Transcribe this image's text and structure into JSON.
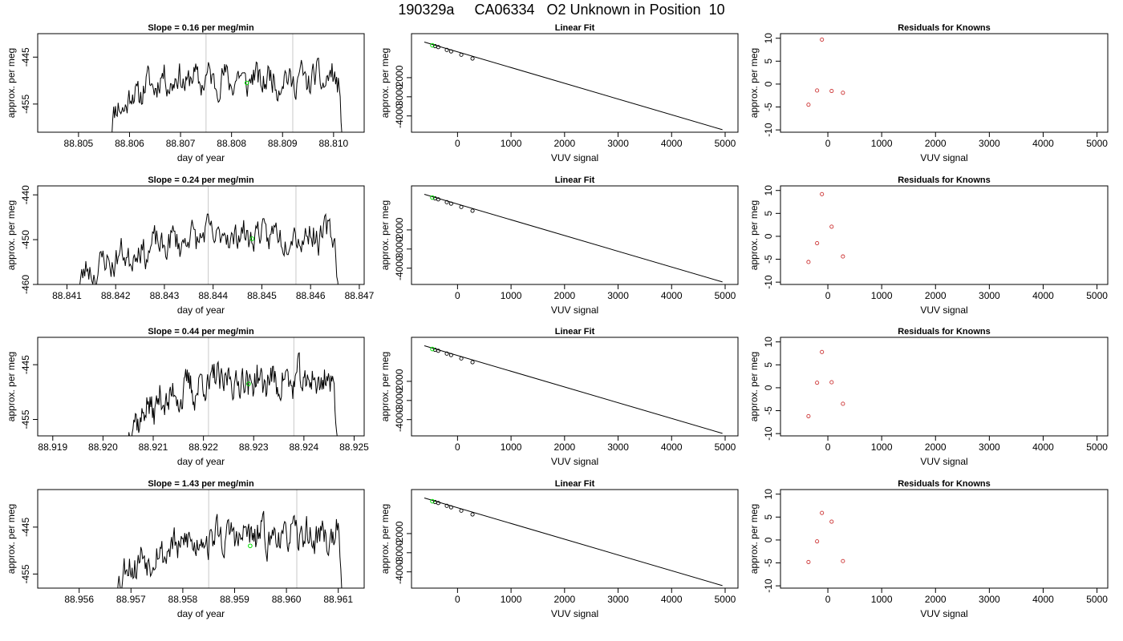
{
  "page": {
    "title": "190329a     CA06334   O2 Unknown in Position  10"
  },
  "colors": {
    "trace": "#000000",
    "marker": "#00e000",
    "residual_points": "#cc3333",
    "guide_lines": "#c8c8c8"
  },
  "chart_data": [
    {
      "type": "line",
      "id": "time-1",
      "title": "Slope =  0.16  per meg/min",
      "xlabel": "day of year",
      "ylabel": "approx. per meg",
      "xlim": [
        88.8042,
        88.8106
      ],
      "ylim": [
        -461,
        -440
      ],
      "xticks": [
        "88.805",
        "88.806",
        "88.807",
        "88.808",
        "88.809",
        "88.810"
      ],
      "xtick_values": [
        88.805,
        88.806,
        88.807,
        88.808,
        88.809,
        88.81
      ],
      "yticks": [
        "-445",
        "-455"
      ],
      "ytick_values": [
        -445,
        -455
      ],
      "x_start": 88.8056,
      "x_end": 88.8102,
      "level_start": -461,
      "level_end": -449.8,
      "ramp_end": 88.8066,
      "drop_start": 88.8101,
      "noise": 1.2,
      "seed": 11,
      "guide_lines": [
        88.8075,
        88.8092
      ],
      "marker": {
        "x": 88.8083,
        "y": -450.5
      }
    },
    {
      "type": "scatter",
      "id": "fit-1",
      "title": "Linear Fit",
      "xlabel": "VUV signal",
      "ylabel": "approx. per meg",
      "xlim": [
        -860,
        5240
      ],
      "ylim": [
        -4850,
        300
      ],
      "xticks": [
        "0",
        "1000",
        "2000",
        "3000",
        "4000",
        "5000"
      ],
      "xtick_values": [
        0,
        1000,
        2000,
        3000,
        4000,
        5000
      ],
      "yticks": [
        "-2000",
        "-3000",
        "-4000"
      ],
      "ytick_values": [
        -2000,
        -3000,
        -4000
      ],
      "points": [
        [
          -420,
          -350
        ],
        [
          -360,
          -403
        ],
        [
          -200,
          -552
        ],
        [
          -120,
          -627
        ],
        [
          70,
          -804
        ],
        [
          280,
          -1000
        ]
      ],
      "line": [
        [
          -620,
          -140
        ],
        [
          4950,
          -4720
        ]
      ],
      "marker": {
        "x": -470,
        "y": -310
      }
    },
    {
      "type": "scatter",
      "id": "resid-1",
      "title": "Residuals for Knowns",
      "xlabel": "VUV signal",
      "ylabel": "approx. per meg",
      "xlim": [
        -880,
        5200
      ],
      "ylim": [
        -10.5,
        11
      ],
      "xticks": [
        "0",
        "1000",
        "2000",
        "3000",
        "4000",
        "5000"
      ],
      "xtick_values": [
        0,
        1000,
        2000,
        3000,
        4000,
        5000
      ],
      "yticks": [
        "-10",
        "-5",
        "0",
        "5",
        "10"
      ],
      "ytick_values": [
        -10,
        -5,
        0,
        5,
        10
      ],
      "points": [
        [
          -360,
          -4.5
        ],
        [
          -200,
          -1.4
        ],
        [
          -110,
          9.7
        ],
        [
          70,
          -1.5
        ],
        [
          280,
          -1.9
        ]
      ]
    },
    {
      "type": "line",
      "id": "time-2",
      "title": "Slope =  0.24  per meg/min",
      "xlabel": "day of year",
      "ylabel": "approx. per meg",
      "xlim": [
        88.8404,
        88.8471
      ],
      "ylim": [
        -460,
        -438
      ],
      "xticks": [
        "88.841",
        "88.842",
        "88.843",
        "88.844",
        "88.845",
        "88.846",
        "88.847"
      ],
      "xtick_values": [
        88.841,
        88.842,
        88.843,
        88.844,
        88.845,
        88.846,
        88.847
      ],
      "yticks": [
        "-440",
        "-450",
        "-460"
      ],
      "ytick_values": [
        -440,
        -450,
        -460
      ],
      "x_start": 88.8412,
      "x_end": 88.8466,
      "level_start": -461,
      "level_end": -449,
      "ramp_end": 88.8438,
      "drop_start": 88.8465,
      "noise": 1.3,
      "seed": 23,
      "guide_lines": [
        88.8439,
        88.8457
      ],
      "marker": {
        "x": 88.8448,
        "y": -449.8
      }
    },
    {
      "type": "scatter",
      "id": "fit-2",
      "title": "Linear Fit",
      "xlabel": "VUV signal",
      "ylabel": "approx. per meg",
      "xlim": [
        -860,
        5240
      ],
      "ylim": [
        -4850,
        300
      ],
      "xticks": [
        "0",
        "1000",
        "2000",
        "3000",
        "4000",
        "5000"
      ],
      "xtick_values": [
        0,
        1000,
        2000,
        3000,
        4000,
        5000
      ],
      "yticks": [
        "-2000",
        "-3000",
        "-4000"
      ],
      "ytick_values": [
        -2000,
        -3000,
        -4000
      ],
      "points": [
        [
          -420,
          -350
        ],
        [
          -360,
          -403
        ],
        [
          -200,
          -552
        ],
        [
          -120,
          -627
        ],
        [
          70,
          -804
        ],
        [
          280,
          -1000
        ]
      ],
      "line": [
        [
          -620,
          -140
        ],
        [
          4950,
          -4720
        ]
      ],
      "marker": {
        "x": -470,
        "y": -310
      }
    },
    {
      "type": "scatter",
      "id": "resid-2",
      "title": "Residuals for Knowns",
      "xlabel": "VUV signal",
      "ylabel": "approx. per meg",
      "xlim": [
        -880,
        5200
      ],
      "ylim": [
        -10.5,
        11
      ],
      "xticks": [
        "0",
        "1000",
        "2000",
        "3000",
        "4000",
        "5000"
      ],
      "xtick_values": [
        0,
        1000,
        2000,
        3000,
        4000,
        5000
      ],
      "yticks": [
        "-10",
        "-5",
        "0",
        "5",
        "10"
      ],
      "ytick_values": [
        -10,
        -5,
        0,
        5,
        10
      ],
      "points": [
        [
          -360,
          -5.6
        ],
        [
          -200,
          -1.5
        ],
        [
          -110,
          9.2
        ],
        [
          70,
          2.1
        ],
        [
          280,
          -4.4
        ]
      ]
    },
    {
      "type": "line",
      "id": "time-3",
      "title": "Slope =  0.44  per meg/min",
      "xlabel": "day of year",
      "ylabel": "approx. per meg",
      "xlim": [
        88.9187,
        88.9252
      ],
      "ylim": [
        -458,
        -440
      ],
      "xticks": [
        "88.919",
        "88.920",
        "88.921",
        "88.922",
        "88.923",
        "88.924",
        "88.925"
      ],
      "xtick_values": [
        88.919,
        88.92,
        88.921,
        88.922,
        88.923,
        88.924,
        88.925
      ],
      "yticks": [
        "-445",
        "-455"
      ],
      "ytick_values": [
        -445,
        -455
      ],
      "x_start": 88.9205,
      "x_end": 88.9247,
      "level_start": -458,
      "level_end": -448,
      "ramp_end": 88.9222,
      "drop_start": 88.9246,
      "noise": 1.2,
      "seed": 37,
      "guide_lines": [
        88.9221,
        88.9238
      ],
      "marker": {
        "x": 88.9229,
        "y": -448.5
      }
    },
    {
      "type": "scatter",
      "id": "fit-3",
      "title": "Linear Fit",
      "xlabel": "VUV signal",
      "ylabel": "approx. per meg",
      "xlim": [
        -860,
        5240
      ],
      "ylim": [
        -4850,
        300
      ],
      "xticks": [
        "0",
        "1000",
        "2000",
        "3000",
        "4000",
        "5000"
      ],
      "xtick_values": [
        0,
        1000,
        2000,
        3000,
        4000,
        5000
      ],
      "yticks": [
        "-2000",
        "-3000",
        "-4000"
      ],
      "ytick_values": [
        -2000,
        -3000,
        -4000
      ],
      "points": [
        [
          -420,
          -350
        ],
        [
          -360,
          -403
        ],
        [
          -200,
          -552
        ],
        [
          -120,
          -627
        ],
        [
          70,
          -804
        ],
        [
          280,
          -1000
        ]
      ],
      "line": [
        [
          -620,
          -140
        ],
        [
          4950,
          -4720
        ]
      ],
      "marker": {
        "x": -470,
        "y": -310
      }
    },
    {
      "type": "scatter",
      "id": "resid-3",
      "title": "Residuals for Knowns",
      "xlabel": "VUV signal",
      "ylabel": "approx. per meg",
      "xlim": [
        -880,
        5200
      ],
      "ylim": [
        -10.5,
        11
      ],
      "xticks": [
        "0",
        "1000",
        "2000",
        "3000",
        "4000",
        "5000"
      ],
      "xtick_values": [
        0,
        1000,
        2000,
        3000,
        4000,
        5000
      ],
      "yticks": [
        "-10",
        "-5",
        "0",
        "5",
        "10"
      ],
      "ytick_values": [
        -10,
        -5,
        0,
        5,
        10
      ],
      "points": [
        [
          -360,
          -6.2
        ],
        [
          -200,
          1.1
        ],
        [
          -110,
          7.8
        ],
        [
          70,
          1.2
        ],
        [
          280,
          -3.5
        ]
      ]
    },
    {
      "type": "line",
      "id": "time-4",
      "title": "Slope =  1.43  per meg/min",
      "xlabel": "day of year",
      "ylabel": "approx. per meg",
      "xlim": [
        88.9552,
        88.9615
      ],
      "ylim": [
        -458,
        -437
      ],
      "xticks": [
        "88.956",
        "88.957",
        "88.958",
        "88.959",
        "88.960",
        "88.961"
      ],
      "xtick_values": [
        88.956,
        88.957,
        88.958,
        88.959,
        88.96,
        88.961
      ],
      "yticks": [
        "-445",
        "-455"
      ],
      "ytick_values": [
        -445,
        -455
      ],
      "x_start": 88.9567,
      "x_end": 88.9611,
      "level_start": -457,
      "level_end": -447,
      "ramp_end": 88.9586,
      "drop_start": 88.961,
      "noise": 1.4,
      "seed": 53,
      "guide_lines": [
        88.9585,
        88.9602
      ],
      "marker": {
        "x": 88.9593,
        "y": -449
      }
    },
    {
      "type": "scatter",
      "id": "fit-4",
      "title": "Linear Fit",
      "xlabel": "VUV signal",
      "ylabel": "approx. per meg",
      "xlim": [
        -860,
        5240
      ],
      "ylim": [
        -4850,
        300
      ],
      "xticks": [
        "0",
        "1000",
        "2000",
        "3000",
        "4000",
        "5000"
      ],
      "xtick_values": [
        0,
        1000,
        2000,
        3000,
        4000,
        5000
      ],
      "yticks": [
        "-2000",
        "-3000",
        "-4000"
      ],
      "ytick_values": [
        -2000,
        -3000,
        -4000
      ],
      "points": [
        [
          -420,
          -350
        ],
        [
          -360,
          -403
        ],
        [
          -200,
          -552
        ],
        [
          -120,
          -627
        ],
        [
          70,
          -804
        ],
        [
          280,
          -1000
        ]
      ],
      "line": [
        [
          -620,
          -140
        ],
        [
          4950,
          -4720
        ]
      ],
      "marker": {
        "x": -470,
        "y": -310
      }
    },
    {
      "type": "scatter",
      "id": "resid-4",
      "title": "Residuals for Knowns",
      "xlabel": "VUV signal",
      "ylabel": "approx. per meg",
      "xlim": [
        -880,
        5200
      ],
      "ylim": [
        -10.5,
        11
      ],
      "xticks": [
        "0",
        "1000",
        "2000",
        "3000",
        "4000",
        "5000"
      ],
      "xtick_values": [
        0,
        1000,
        2000,
        3000,
        4000,
        5000
      ],
      "yticks": [
        "-10",
        "-5",
        "0",
        "5",
        "10"
      ],
      "ytick_values": [
        -10,
        -5,
        0,
        5,
        10
      ],
      "points": [
        [
          -360,
          -4.8
        ],
        [
          -200,
          -0.3
        ],
        [
          -110,
          5.9
        ],
        [
          70,
          4.0
        ],
        [
          280,
          -4.6
        ]
      ]
    }
  ]
}
